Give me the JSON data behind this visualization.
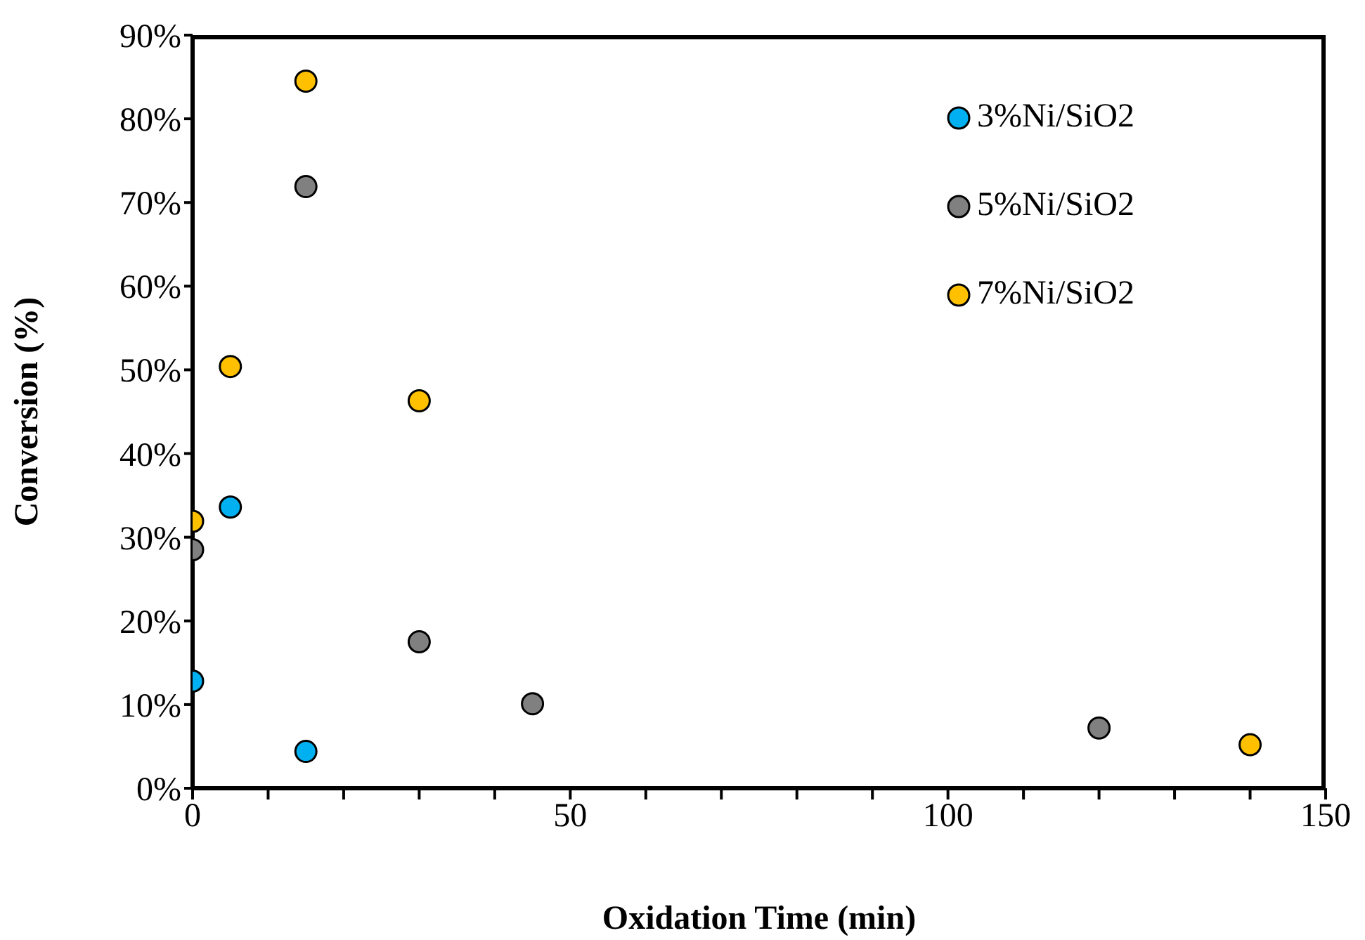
{
  "chart_data": {
    "type": "scatter",
    "xlabel": "Oxidation Time (min)",
    "ylabel": "Conversion (%)",
    "xlim": [
      0,
      150
    ],
    "xticks": [
      0,
      {
        "value": 10,
        "label": null
      },
      {
        "value": 20,
        "label": null
      },
      {
        "value": 30,
        "label": null
      },
      {
        "value": 40,
        "label": null
      },
      50,
      {
        "value": 60,
        "label": null
      },
      {
        "value": 70,
        "label": null
      },
      {
        "value": 80,
        "label": null
      },
      {
        "value": 90,
        "label": null
      },
      100,
      {
        "value": 110,
        "label": null
      },
      {
        "value": 120,
        "label": null
      },
      {
        "value": 130,
        "label": null
      },
      {
        "value": 140,
        "label": null
      },
      150
    ],
    "ylim": [
      0,
      90
    ],
    "yticks": [
      {
        "value": 0,
        "label": "0%"
      },
      {
        "value": 10,
        "label": "10%"
      },
      {
        "value": 20,
        "label": "20%"
      },
      {
        "value": 30,
        "label": "30%"
      },
      {
        "value": 40,
        "label": "40%"
      },
      {
        "value": 50,
        "label": "50%"
      },
      {
        "value": 60,
        "label": "60%"
      },
      {
        "value": 70,
        "label": "70%"
      },
      {
        "value": 80,
        "label": "80%"
      },
      {
        "value": 90,
        "label": "90%"
      }
    ],
    "grid": false,
    "legend": "top right",
    "marker": "circle",
    "series": [
      {
        "name": "3%Ni/SiO2",
        "color": "#00b0f0",
        "x": [
          0,
          5,
          15
        ],
        "values": [
          12.8,
          33.6,
          4.4
        ]
      },
      {
        "name": "5%Ni/SiO2",
        "color": "#808080",
        "x": [
          0,
          15,
          30,
          45,
          120
        ],
        "values": [
          28.5,
          71.9,
          17.5,
          10.1,
          7.2
        ]
      },
      {
        "name": "7%Ni/SiO2",
        "color": "#ffc000",
        "x": [
          0,
          5,
          15,
          30,
          140
        ],
        "values": [
          31.9,
          50.4,
          84.5,
          46.3,
          5.2
        ]
      }
    ]
  }
}
